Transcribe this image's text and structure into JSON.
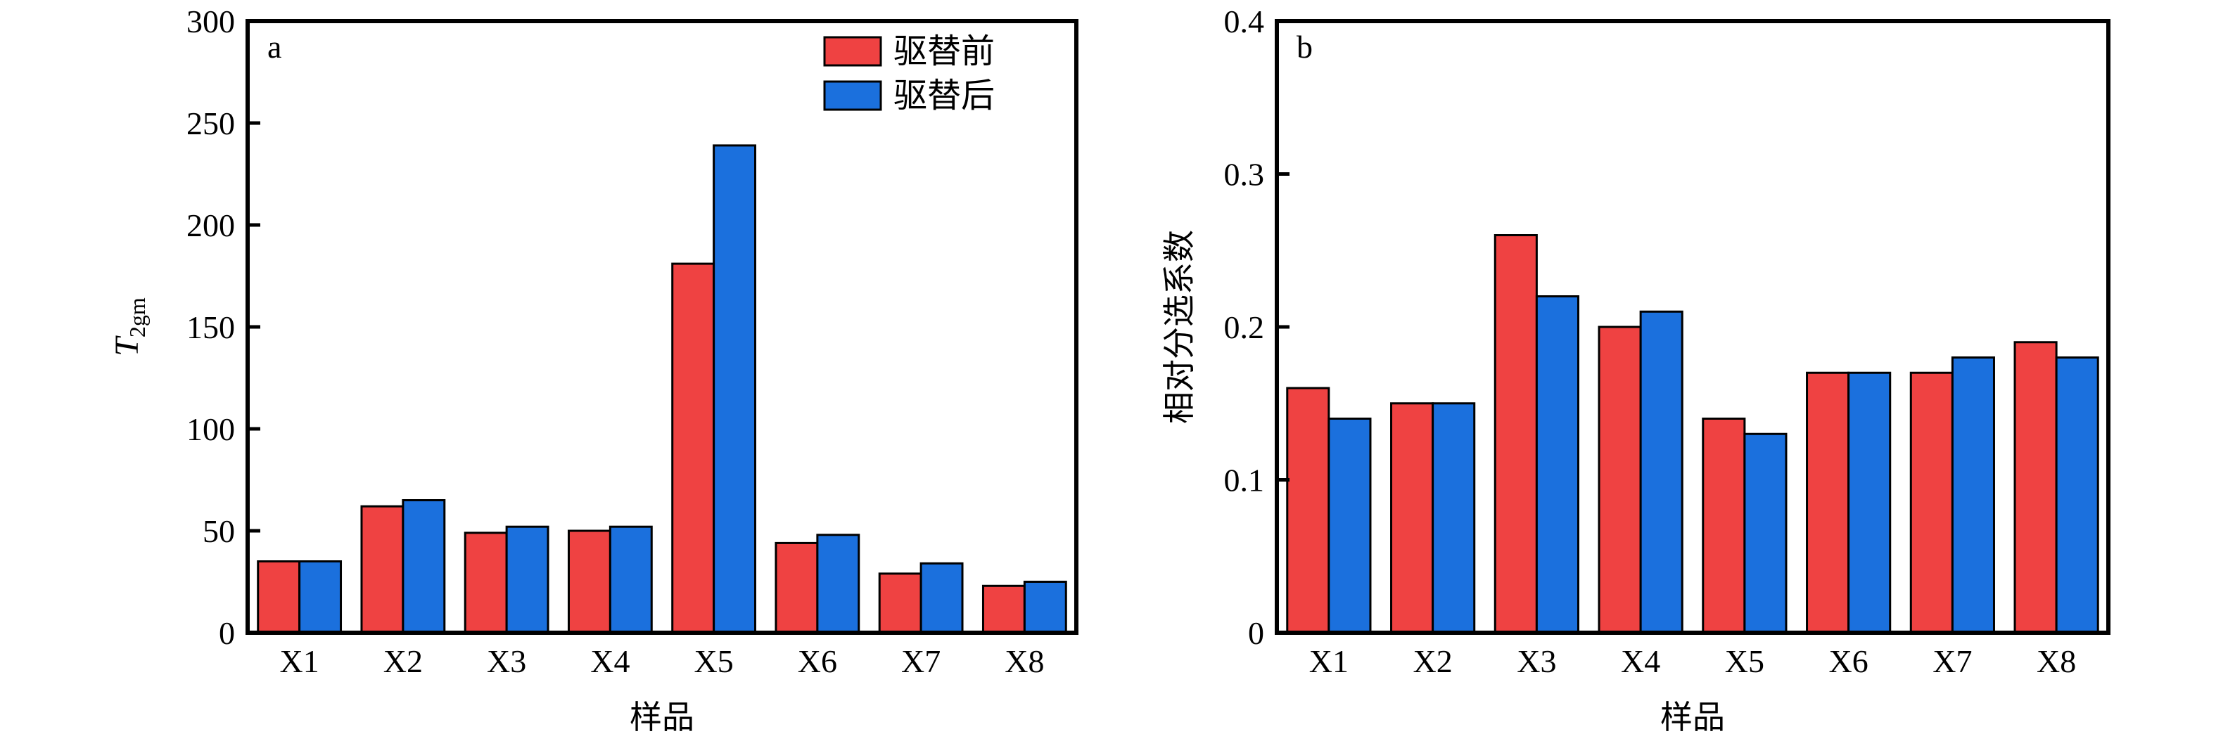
{
  "colors": {
    "before": "#ef4242",
    "after": "#1b70dd",
    "axis": "#000000"
  },
  "legend": {
    "before": "驱替前",
    "after": "驱替后"
  },
  "chart_data": [
    {
      "type": "bar",
      "panel": "a",
      "title": "",
      "xlabel": "样品",
      "ylabel": {
        "main": "T",
        "sub": "2gm"
      },
      "ylim": [
        0,
        300
      ],
      "yticks": [
        0,
        50,
        100,
        150,
        200,
        250,
        300
      ],
      "ytick_labels": [
        "0",
        "50",
        "100",
        "150",
        "200",
        "250",
        "300"
      ],
      "categories": [
        "X1",
        "X2",
        "X3",
        "X4",
        "X5",
        "X6",
        "X7",
        "X8"
      ],
      "series": [
        {
          "name": "驱替前",
          "values": [
            35,
            62,
            49,
            50,
            181,
            44,
            29,
            23
          ]
        },
        {
          "name": "驱替后",
          "values": [
            35,
            65,
            52,
            52,
            239,
            48,
            34,
            25
          ]
        }
      ],
      "legend_position": "top-right",
      "grid": false
    },
    {
      "type": "bar",
      "panel": "b",
      "title": "",
      "xlabel": "样品",
      "ylabel": "相对分选系数",
      "ylim": [
        0,
        0.4
      ],
      "yticks": [
        0,
        0.1,
        0.2,
        0.3,
        0.4
      ],
      "ytick_labels": [
        "0",
        "0.1",
        "0.2",
        "0.3",
        "0.4"
      ],
      "categories": [
        "X1",
        "X2",
        "X3",
        "X4",
        "X5",
        "X6",
        "X7",
        "X8"
      ],
      "series": [
        {
          "name": "驱替前",
          "values": [
            0.16,
            0.15,
            0.26,
            0.2,
            0.14,
            0.17,
            0.17,
            0.19
          ]
        },
        {
          "name": "驱替后",
          "values": [
            0.14,
            0.15,
            0.22,
            0.21,
            0.13,
            0.17,
            0.18,
            0.18
          ]
        }
      ],
      "grid": false
    }
  ]
}
